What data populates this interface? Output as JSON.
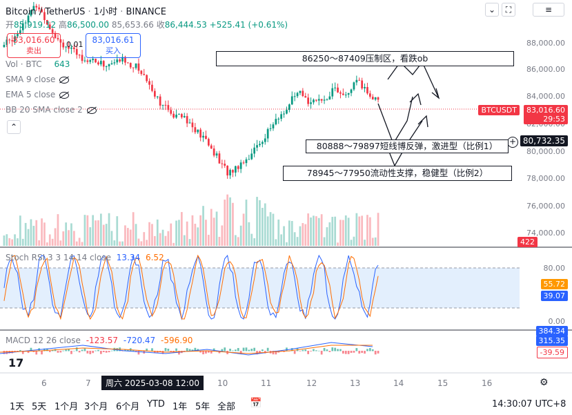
{
  "header": {
    "symbol": "Bitcoin / TetherUS",
    "sep1": "·",
    "interval": "1小时",
    "sep2": "·",
    "exchange": "BINANCE",
    "open_label": "开",
    "open": "85,919.12",
    "high_label": "高",
    "high": "86,500.00",
    "close_label": "收",
    "close": "86,444.53",
    "low_label": "",
    "low": "85,653.66",
    "change": "+525.41 (+0.61%)"
  },
  "trade": {
    "sell_price": "83,016.60",
    "sell_label": "卖出",
    "spread": "0.01",
    "buy_price": "83,016.61",
    "buy_label": "买入"
  },
  "indicators": {
    "vol_label": "Vol · BTC",
    "vol_value": "643",
    "sma": "SMA 9 close",
    "ema": "EMA 5 close",
    "bb": "BB 20 SMA close 2",
    "stoch_label": "Stoch RSI 3 3 14 14 close",
    "stoch_k": "13.34",
    "stoch_d": "6.52",
    "macd_label": "MACD 12 26 close",
    "macd_v1": "-123.57",
    "macd_v2": "-720.47",
    "macd_v3": "-596.90"
  },
  "price_axis": [
    "88,000.00",
    "86,000.00",
    "84,000.00",
    "82,000.00",
    "80,000.00",
    "78,000.00",
    "76,000.00",
    "74,000.00"
  ],
  "price_tags": {
    "symbol_tag": "BTCUSDT",
    "last_price": "83,016.60",
    "countdown": "29:53",
    "cursor_price": "80,732.35",
    "volume_tag": "422"
  },
  "stoch_axis": [
    "80.00",
    "55.72",
    "39.07",
    "0.00"
  ],
  "macd_axis": [
    "384.34",
    "315.35",
    "-39.59"
  ],
  "time_axis": [
    "6",
    "7",
    "10",
    "11",
    "12",
    "13",
    "14",
    "15",
    "16"
  ],
  "cursor_time": "周六 2025-03-08   12:00",
  "annotations": {
    "resistance": "86250～87409压制区，看跌ob",
    "rebound": "80888～79897短线博反弹，激进型（比例1）",
    "support": "78945～77950流动性支撑，稳健型（比例2）"
  },
  "timeframes": [
    "1天",
    "5天",
    "1个月",
    "3个月",
    "6个月",
    "YTD",
    "1年",
    "5年",
    "全部"
  ],
  "clock": "14:30:07 UTC+8",
  "colors": {
    "up": "#089981",
    "down": "#f23645",
    "k_line": "#2962ff",
    "d_line": "#ff6d00",
    "band": "#e3effd"
  },
  "chart_data": {
    "type": "candlestick",
    "interval": "1h",
    "x_ticks": [
      "6",
      "7",
      "10",
      "11",
      "12",
      "13",
      "14",
      "15",
      "16"
    ],
    "ylim": [
      73500,
      89500
    ],
    "y_ticks": [
      74000,
      76000,
      78000,
      80000,
      82000,
      84000,
      86000,
      88000
    ],
    "price_path": [
      86400,
      86800,
      87200,
      88000,
      88600,
      89200,
      88400,
      87600,
      86900,
      86500,
      86100,
      85800,
      85600,
      85500,
      85300,
      85200,
      85400,
      85600,
      85300,
      85100,
      84600,
      83800,
      83000,
      82400,
      81900,
      82200,
      81700,
      81000,
      80600,
      80100,
      79400,
      78600,
      78100,
      78500,
      78900,
      79300,
      79900,
      80500,
      81200,
      81700,
      82300,
      83000,
      83300,
      82800,
      83100,
      82600,
      83300,
      83800,
      83000,
      83500,
      84100,
      83700,
      83100,
      83016
    ],
    "zones": [
      {
        "label": "86250～87409压制区，看跌ob",
        "low": 86250,
        "high": 87409
      },
      {
        "label": "80888～79897短线博反弹，激进型（比例1）",
        "low": 79897,
        "high": 80888
      },
      {
        "label": "78945～77950流动性支撑，稳健型（比例2）",
        "low": 77950,
        "high": 78945
      }
    ],
    "last_price": 83016.6,
    "cursor_price": 80732.35
  }
}
